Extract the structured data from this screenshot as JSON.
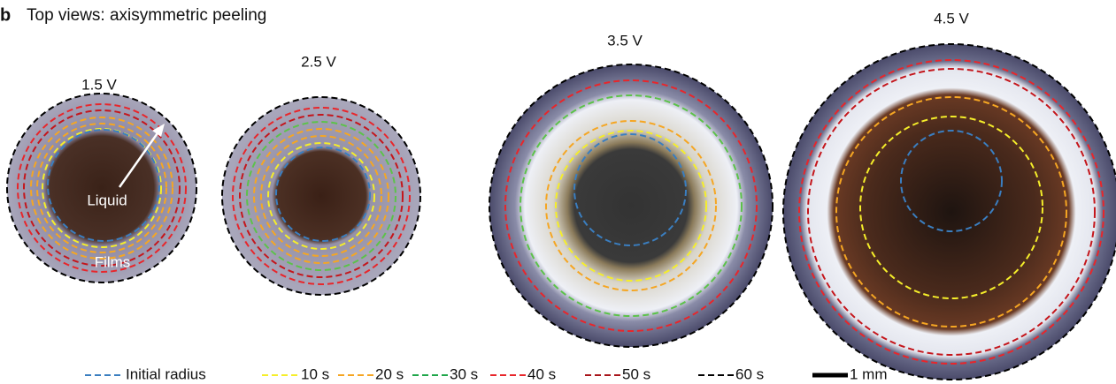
{
  "panel_label": "b",
  "title": "Top views: axisymmetric peeling",
  "panels": [
    "1.5 V",
    "2.5 V",
    "3.5 V",
    "4.5 V"
  ],
  "annotations": {
    "liquid": "Liquid",
    "films": "Films"
  },
  "legend": [
    "Initial radius",
    "10 s",
    "20 s",
    "30 s",
    "40 s",
    "50 s",
    "60 s"
  ],
  "scale_bar": "1 mm"
}
